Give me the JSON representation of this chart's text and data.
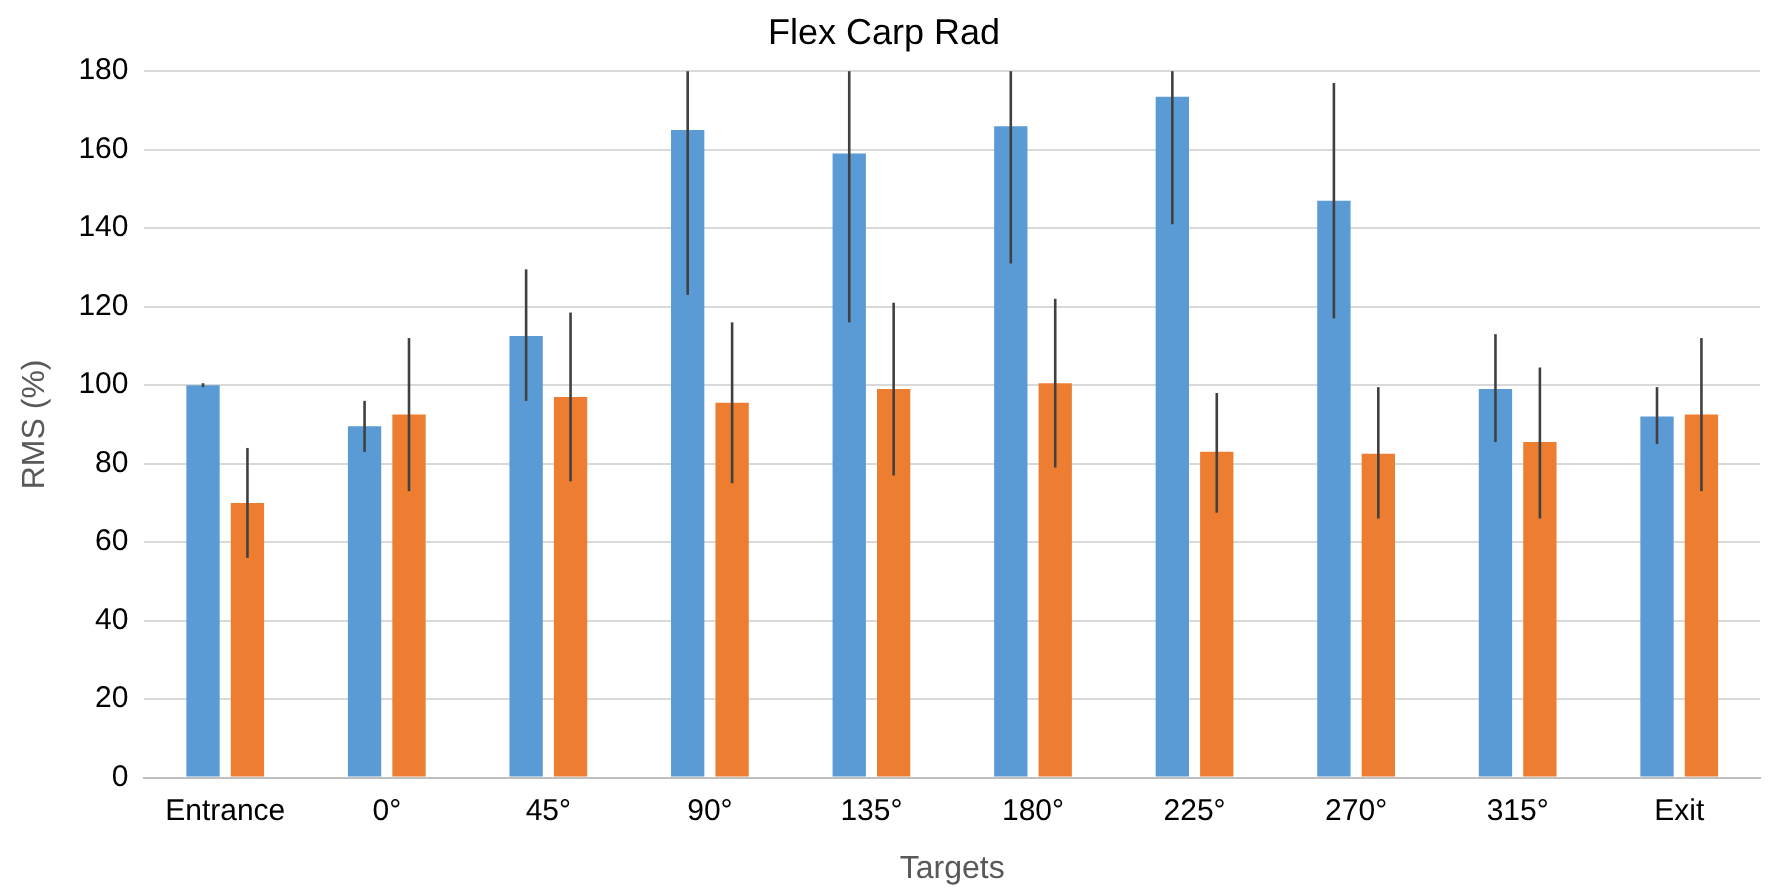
{
  "chart_data": {
    "type": "bar",
    "title": "Flex Carp Rad",
    "xlabel": "Targets",
    "ylabel": "RMS (%)",
    "categories": [
      "Entrance",
      "0°",
      "45°",
      "90°",
      "135°",
      "180°",
      "225°",
      "270°",
      "315°",
      "Exit"
    ],
    "series": [
      {
        "color": "#5b9bd5",
        "values": [
          100,
          89.5,
          112.5,
          165,
          159,
          166,
          173.5,
          147,
          99,
          92
        ],
        "errors": [
          [
            99.5,
            100.5
          ],
          [
            83,
            96
          ],
          [
            96,
            129.5
          ],
          [
            123,
            180
          ],
          [
            116,
            180
          ],
          [
            131,
            180
          ],
          [
            141,
            180
          ],
          [
            117,
            177
          ],
          [
            85.5,
            113
          ],
          [
            85,
            99.5
          ]
        ]
      },
      {
        "color": "#ed7d31",
        "values": [
          70,
          92.5,
          97,
          95.5,
          99,
          100.5,
          83,
          82.5,
          85.5,
          92.5
        ],
        "errors": [
          [
            56,
            84
          ],
          [
            73,
            112
          ],
          [
            75.5,
            118.5
          ],
          [
            75,
            116
          ],
          [
            77,
            121
          ],
          [
            79,
            122
          ],
          [
            67.5,
            98
          ],
          [
            66,
            99.5
          ],
          [
            66,
            104.5
          ],
          [
            73,
            112
          ]
        ]
      }
    ],
    "ylim": [
      0,
      180
    ],
    "yticks": [
      0,
      20,
      40,
      60,
      80,
      100,
      120,
      140,
      160,
      180
    ],
    "grid": "y",
    "legend": false
  }
}
